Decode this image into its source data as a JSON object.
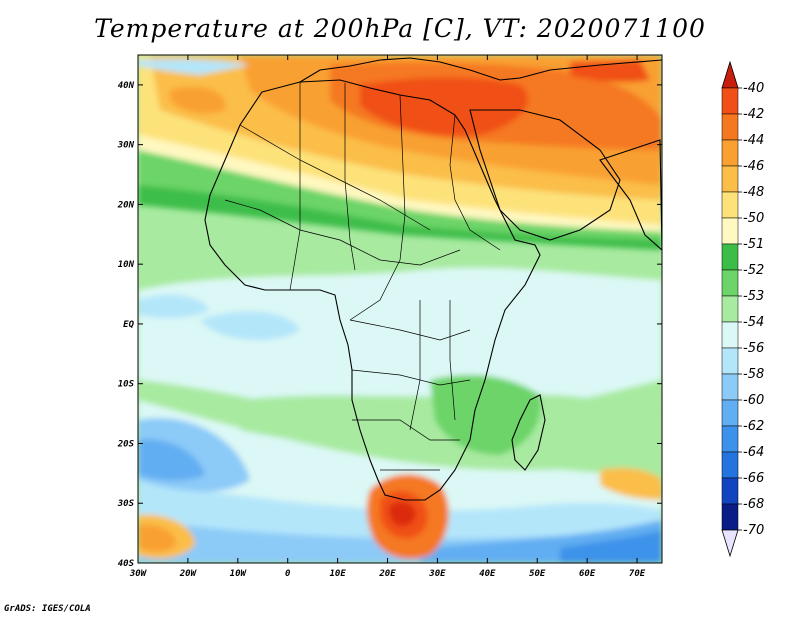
{
  "title": "Temperature at 200hPa [C], VT: 2020071100",
  "credit": "GrADS: IGES/COLA",
  "map": {
    "lon_range": [
      -30,
      75
    ],
    "lat_range": [
      -40,
      45
    ],
    "lon_ticks": [
      {
        "value": -30,
        "label": "30W"
      },
      {
        "value": -20,
        "label": "20W"
      },
      {
        "value": -10,
        "label": "10W"
      },
      {
        "value": 0,
        "label": "0"
      },
      {
        "value": 10,
        "label": "10E"
      },
      {
        "value": 20,
        "label": "20E"
      },
      {
        "value": 30,
        "label": "30E"
      },
      {
        "value": 40,
        "label": "40E"
      },
      {
        "value": 50,
        "label": "50E"
      },
      {
        "value": 60,
        "label": "60E"
      },
      {
        "value": 70,
        "label": "70E"
      }
    ],
    "lat_ticks": [
      {
        "value": 40,
        "label": "40N"
      },
      {
        "value": 30,
        "label": "30N"
      },
      {
        "value": 20,
        "label": "20N"
      },
      {
        "value": 10,
        "label": "10N"
      },
      {
        "value": 0,
        "label": "EQ"
      },
      {
        "value": -10,
        "label": "10S"
      },
      {
        "value": -20,
        "label": "20S"
      },
      {
        "value": -30,
        "label": "30S"
      },
      {
        "value": -40,
        "label": "40S"
      }
    ]
  },
  "colorbar": {
    "levels": [
      {
        "label": "-40",
        "color": "#dc2a10"
      },
      {
        "label": "-42",
        "color": "#f05018"
      },
      {
        "label": "-44",
        "color": "#f57820"
      },
      {
        "label": "-46",
        "color": "#f9a030"
      },
      {
        "label": "-48",
        "color": "#fbbe48"
      },
      {
        "label": "-50",
        "color": "#fde27a"
      },
      {
        "label": "-51",
        "color": "#fff8c0"
      },
      {
        "label": "-52",
        "color": "#3cbd48"
      },
      {
        "label": "-53",
        "color": "#6cd468"
      },
      {
        "label": "-54",
        "color": "#a8eaa0"
      },
      {
        "label": "-56",
        "color": "#dcf8f6"
      },
      {
        "label": "-58",
        "color": "#b4e6fa"
      },
      {
        "label": "-60",
        "color": "#8ccaf8"
      },
      {
        "label": "-62",
        "color": "#62aef2"
      },
      {
        "label": "-64",
        "color": "#3c92ea"
      },
      {
        "label": "-66",
        "color": "#2474e0"
      },
      {
        "label": "-68",
        "color": "#1244c0"
      },
      {
        "label": "-70",
        "color": "#0a1c86"
      }
    ],
    "top_arrow_color": "#c81e10",
    "bottom_arrow_color": "#e8e4ff"
  }
}
